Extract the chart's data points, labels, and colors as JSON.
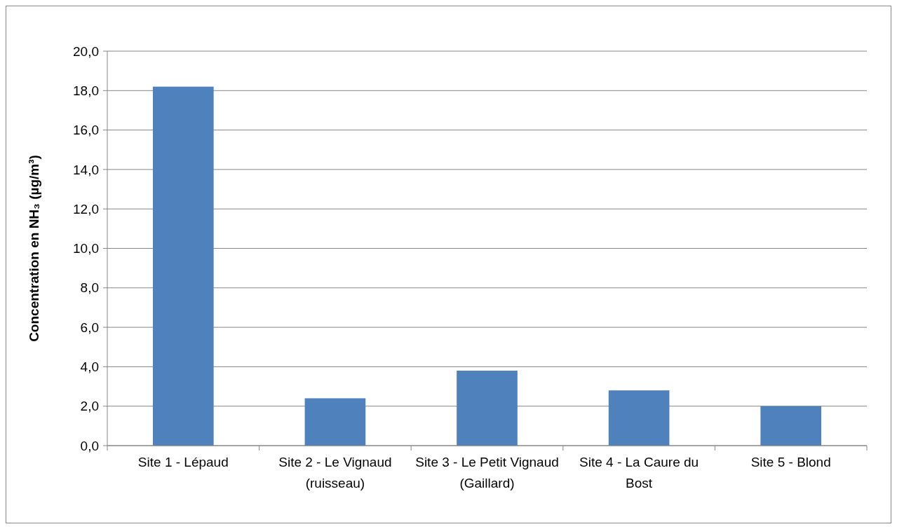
{
  "chart_data": {
    "type": "bar",
    "ylabel": "Concentration en NH₃ (µg/m³)",
    "categories": [
      "Site 1 - Lépaud",
      "Site 2 - Le Vignaud (ruisseau)",
      "Site 3 - Le Petit Vignaud (Gaillard)",
      "Site 4 - La Caure du Bost",
      "Site 5 - Blond"
    ],
    "values": [
      18.2,
      2.4,
      3.8,
      2.8,
      2.0
    ],
    "color": "#4f81bd",
    "ylim": [
      0,
      20
    ],
    "yticks": [
      {
        "value": 0,
        "label": "0,0"
      },
      {
        "value": 2,
        "label": "2,0"
      },
      {
        "value": 4,
        "label": "4,0"
      },
      {
        "value": 6,
        "label": "6,0"
      },
      {
        "value": 8,
        "label": "8,0"
      },
      {
        "value": 10,
        "label": "10,0"
      },
      {
        "value": 12,
        "label": "12,0"
      },
      {
        "value": 14,
        "label": "14,0"
      },
      {
        "value": 16,
        "label": "16,0"
      },
      {
        "value": 18,
        "label": "18,0"
      },
      {
        "value": 20,
        "label": "20,0"
      }
    ],
    "grid": "y"
  }
}
